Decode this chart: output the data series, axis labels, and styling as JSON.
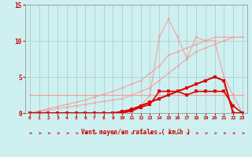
{
  "x": [
    0,
    1,
    2,
    3,
    4,
    5,
    6,
    7,
    8,
    9,
    10,
    11,
    12,
    13,
    14,
    15,
    16,
    17,
    18,
    19,
    20,
    21,
    22,
    23
  ],
  "s_flat": [
    2.5,
    2.5,
    2.5,
    2.5,
    2.5,
    2.5,
    2.5,
    2.5,
    2.5,
    2.5,
    2.5,
    2.5,
    2.5,
    2.5,
    2.5,
    2.5,
    2.5,
    2.5,
    2.5,
    2.5,
    2.5,
    2.5,
    2.5,
    2.5
  ],
  "s_diag1": [
    0,
    0.2,
    0.4,
    0.6,
    0.8,
    1.0,
    1.2,
    1.4,
    1.6,
    1.8,
    2.0,
    2.5,
    3.0,
    3.5,
    4.5,
    5.5,
    6.5,
    7.5,
    8.5,
    9.0,
    9.5,
    10.0,
    10.5,
    10.5
  ],
  "s_diag2": [
    0,
    0.3,
    0.6,
    0.9,
    1.2,
    1.5,
    1.8,
    2.2,
    2.6,
    3.0,
    3.5,
    4.0,
    4.5,
    5.5,
    6.5,
    8.0,
    8.5,
    9.0,
    9.5,
    10.0,
    10.5,
    10.5,
    10.5,
    10.5
  ],
  "s_peak": [
    0,
    0,
    0,
    0,
    0,
    0,
    0,
    0,
    0,
    0,
    0,
    0,
    1.0,
    2.5,
    10.5,
    13.0,
    10.5,
    7.5,
    10.5,
    10.0,
    10.0,
    5.0,
    2.5,
    0.0
  ],
  "s_red1": [
    0,
    0,
    0,
    0,
    0,
    0,
    0,
    0,
    0,
    0,
    0,
    0.3,
    0.8,
    1.2,
    3.0,
    3.0,
    3.0,
    2.5,
    3.0,
    3.0,
    3.0,
    3.0,
    1.0,
    0.0
  ],
  "s_red2": [
    0,
    0,
    0,
    0,
    0,
    0,
    0,
    0,
    0,
    0,
    0.2,
    0.5,
    1.0,
    1.5,
    2.0,
    2.5,
    3.0,
    3.5,
    4.0,
    4.5,
    5.0,
    4.5,
    0.0,
    0.0
  ],
  "color_pink": "#f5a0a0",
  "color_red": "#dd0000",
  "bg_color": "#cef0f0",
  "grid_color": "#a8c8c8",
  "text_color": "#cc0000",
  "xlabel": "Vent moyen/en rafales ( km/h )",
  "ylim": [
    0,
    15
  ],
  "xlim": [
    -0.5,
    23.5
  ],
  "yticks": [
    0,
    5,
    10,
    15
  ],
  "xticks": [
    0,
    1,
    2,
    3,
    4,
    5,
    6,
    7,
    8,
    9,
    10,
    11,
    12,
    13,
    14,
    15,
    16,
    17,
    18,
    19,
    20,
    21,
    22,
    23
  ]
}
